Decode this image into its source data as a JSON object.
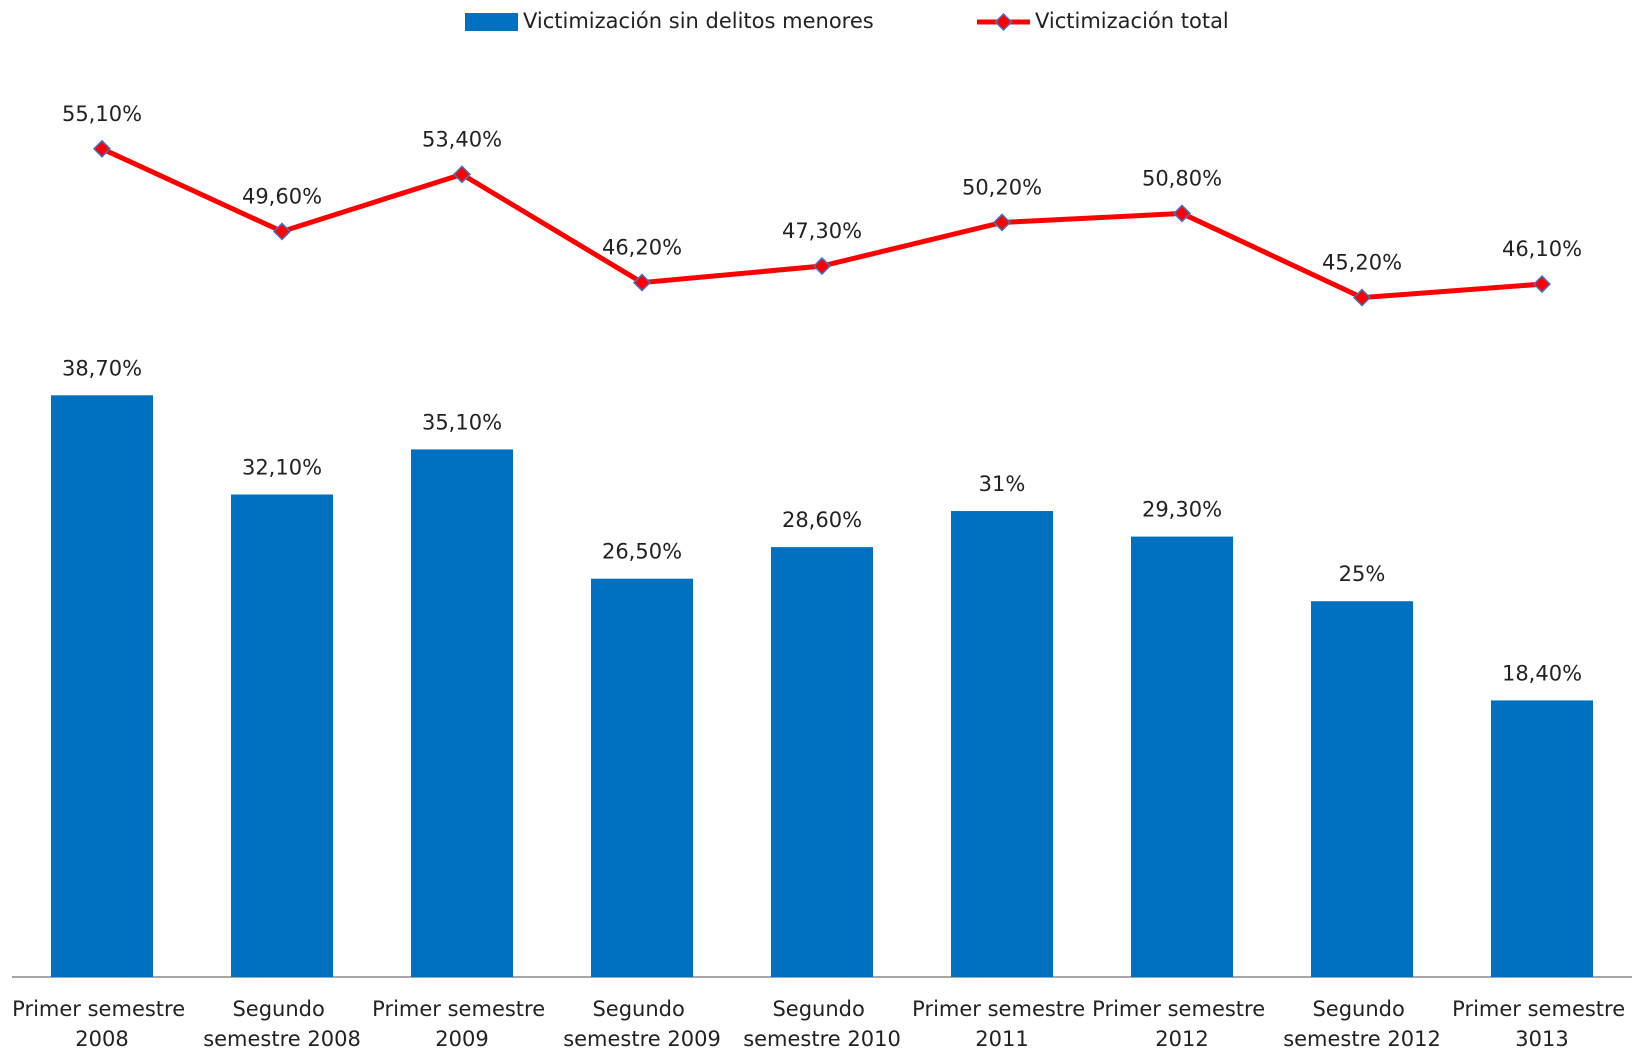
{
  "chart_data": {
    "type": "bar_line",
    "categories": [
      "Primer semestre 2008",
      "Segundo semestre 2008",
      "Primer semestre 2009",
      "Segundo semestre 2009",
      "Segundo semestre 2010",
      "Primer semestre 2011",
      "Primer semestre 2012",
      "Segundo semestre 2012",
      "Primer semestre 3013"
    ],
    "series": [
      {
        "name": "Victimización sin delitos menores",
        "type": "bar",
        "color": "#0070c0",
        "values": [
          38.7,
          32.1,
          35.1,
          26.5,
          28.6,
          31,
          29.3,
          25,
          18.4
        ],
        "value_labels": [
          "38,70%",
          "32,10%",
          "35,10%",
          "26,50%",
          "28,60%",
          "31%",
          "29,30%",
          "25%",
          "18,40%"
        ]
      },
      {
        "name": "Victimización total",
        "type": "line",
        "color": "#ff0000",
        "marker_edge_color": "#4472c4",
        "values": [
          55.1,
          49.6,
          53.4,
          46.2,
          47.3,
          50.2,
          50.8,
          45.2,
          46.1
        ],
        "value_labels": [
          "55,10%",
          "49,60%",
          "53,40%",
          "46,20%",
          "47,30%",
          "50,20%",
          "50,80%",
          "45,20%",
          "46,10%"
        ]
      }
    ],
    "ylim": [
      0,
      65
    ],
    "legend": "top"
  }
}
